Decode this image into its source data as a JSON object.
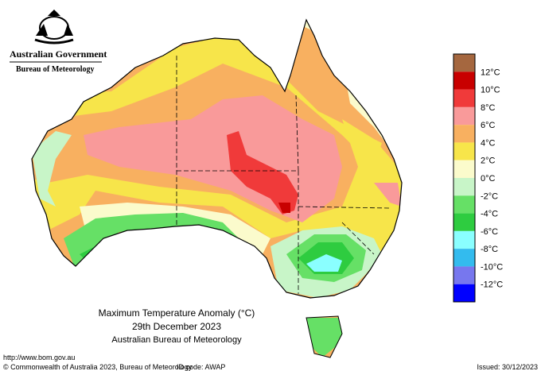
{
  "header": {
    "government": "Australian Government",
    "bureau": "Bureau of Meteorology"
  },
  "legend": {
    "colors": [
      "#a5673f",
      "#c80000",
      "#f03a3a",
      "#f99a9a",
      "#f8b060",
      "#f7e54a",
      "#fbfbcc",
      "#c8f5c8",
      "#66e066",
      "#2ecc40",
      "#8affff",
      "#33bbee",
      "#7777ee",
      "#0000ff"
    ],
    "labels": [
      "12°C",
      "10°C",
      "8°C",
      "6°C",
      "4°C",
      "2°C",
      "0°C",
      "-2°C",
      "-4°C",
      "-6°C",
      "-8°C",
      "-10°C",
      "-12°C"
    ]
  },
  "caption": {
    "title": "Maximum Temperature Anomaly (°C)",
    "date": "29th December 2023",
    "source": "Australian Bureau of Meteorology"
  },
  "footer": {
    "url": "http://www.bom.gov.au",
    "copyright": "© Commonwealth of Australia 2023, Bureau of Meteorology",
    "id_code": "ID code: AWAP",
    "issued": "Issued: 30/12/2023"
  }
}
